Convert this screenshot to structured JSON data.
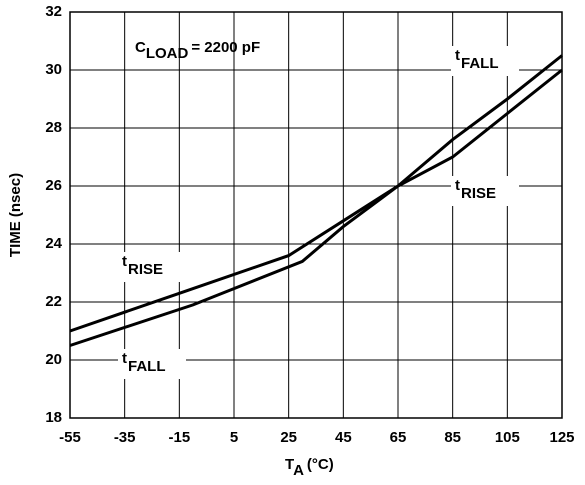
{
  "chart_data": {
    "type": "line",
    "y_label": "TIME (nsec)",
    "x_label": {
      "main": "T",
      "sub": "A",
      "rest": "(°C)"
    },
    "annotation": {
      "main": "C",
      "sub": "LOAD",
      "rest": "= 2200 pF"
    },
    "xlim": [
      -55,
      125
    ],
    "xticks": [
      -55,
      -35,
      -15,
      5,
      25,
      45,
      65,
      85,
      105,
      125
    ],
    "ylim": [
      18,
      32
    ],
    "yticks": [
      18,
      20,
      22,
      24,
      26,
      28,
      30,
      32
    ],
    "grid": true,
    "series": [
      {
        "name": "t",
        "name_sub": "RISE",
        "color": "#000000",
        "x": [
          -55,
          -15,
          25,
          45,
          65,
          85,
          105,
          125
        ],
        "values": [
          21.0,
          22.3,
          23.6,
          24.8,
          26.0,
          27.0,
          28.5,
          30.0
        ]
      },
      {
        "name": "t",
        "name_sub": "FALL",
        "color": "#000000",
        "x": [
          -55,
          -10,
          30,
          45,
          65,
          85,
          105,
          125
        ],
        "values": [
          20.5,
          21.9,
          23.4,
          24.6,
          26.0,
          27.6,
          29.0,
          30.5
        ]
      }
    ]
  }
}
